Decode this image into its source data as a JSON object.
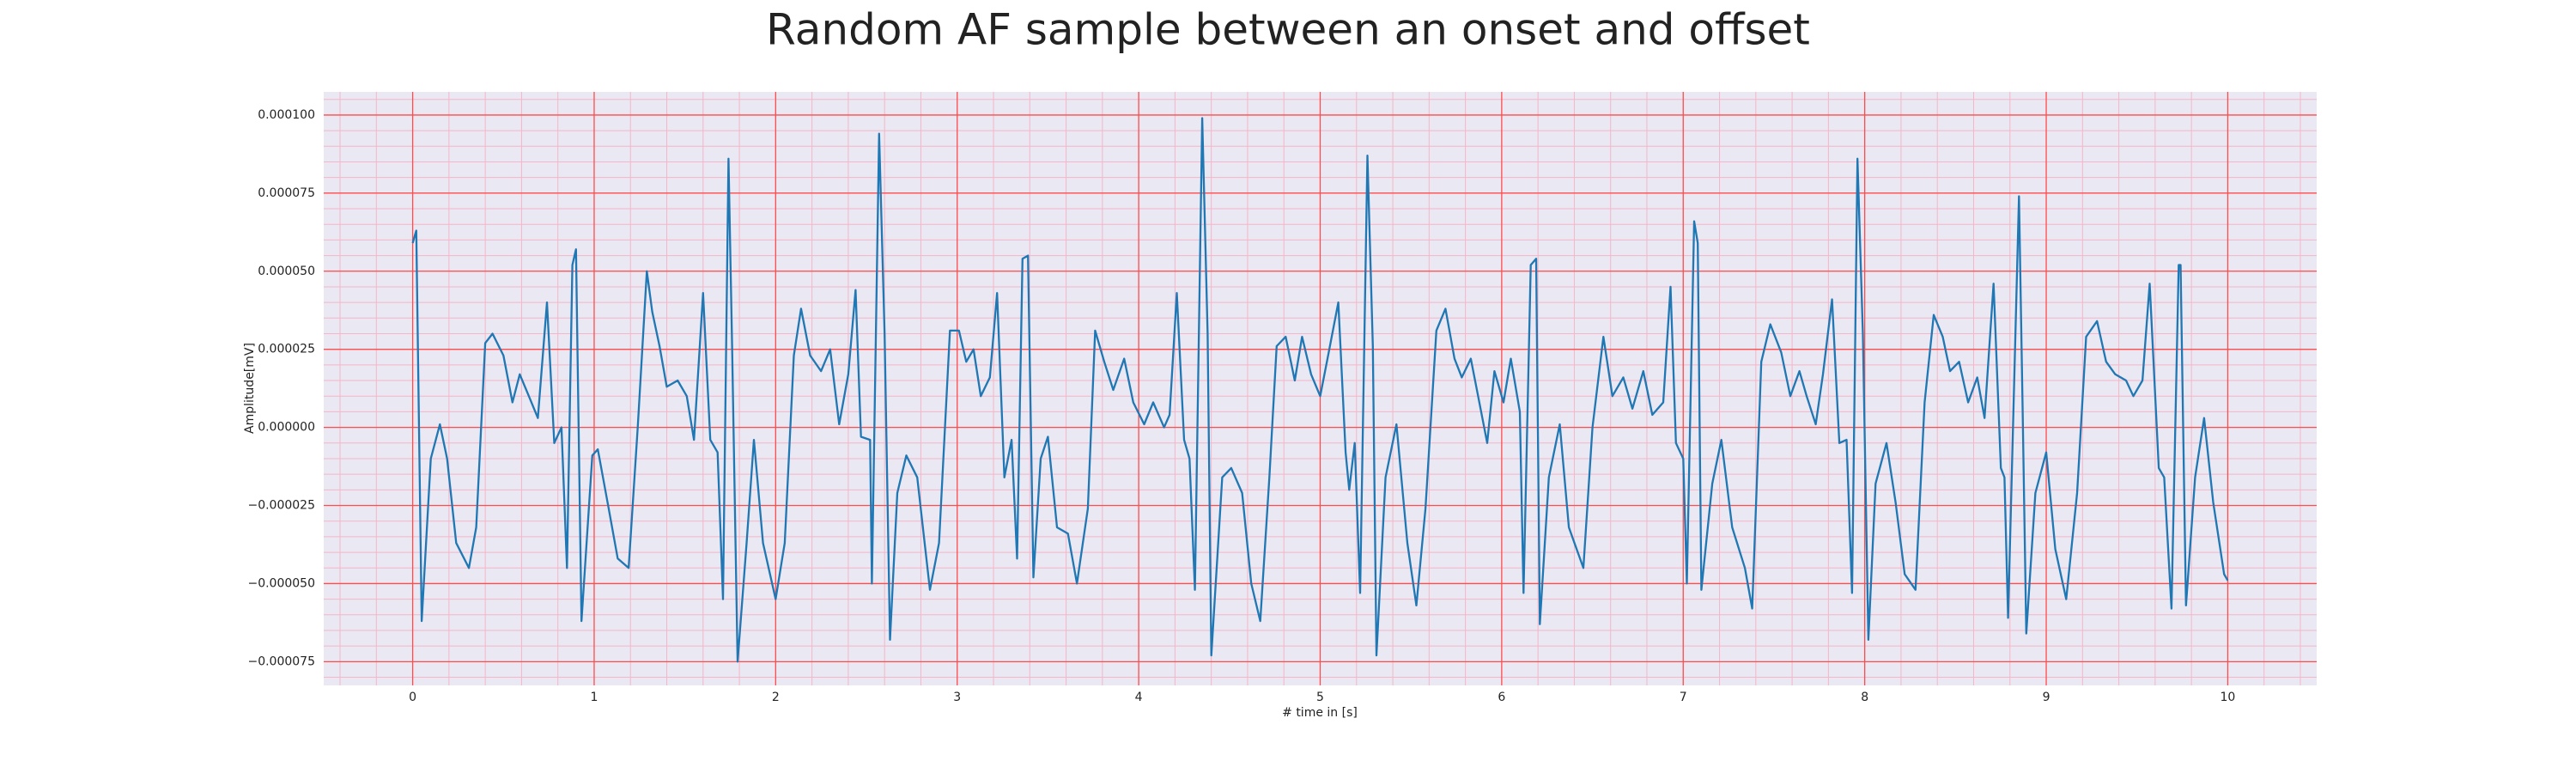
{
  "chart_data": {
    "type": "line",
    "title": "Random AF sample between an onset and offset",
    "x_label": "# time in [s]",
    "y_label": "Amplitude[mV]",
    "color": "#1f77b4",
    "grid": true,
    "major_grid_color": "#ff4d4d",
    "minor_grid_color": "#f4b6c8",
    "background": "#eae8f2",
    "minor_xstep": 0.2,
    "minor_ystep": 5e-06,
    "xlim": [
      -0.49,
      10.49
    ],
    "ylim": [
      -8.26e-05,
      0.0001074
    ],
    "xticks": [
      0,
      1,
      2,
      3,
      4,
      5,
      6,
      7,
      8,
      9,
      10
    ],
    "yticks": [
      {
        "value": -7.5e-05,
        "label": "−0.000075"
      },
      {
        "value": -5e-05,
        "label": "−0.000050"
      },
      {
        "value": -2.5e-05,
        "label": "−0.000025"
      },
      {
        "value": 0,
        "label": "0.000000"
      },
      {
        "value": 2.5e-05,
        "label": "0.000025"
      },
      {
        "value": 5e-05,
        "label": "0.000050"
      },
      {
        "value": 7.5e-05,
        "label": "0.000075"
      },
      {
        "value": 0.0001,
        "label": "0.000100"
      }
    ],
    "x": [
      0,
      0.02,
      0.05,
      0.1,
      0.15,
      0.19,
      0.24,
      0.31,
      0.35,
      0.4,
      0.44,
      0.5,
      0.55,
      0.59,
      0.64,
      0.69,
      0.74,
      0.78,
      0.82,
      0.85,
      0.88,
      0.9,
      0.93,
      0.99,
      1.02,
      1.08,
      1.13,
      1.19,
      1.24,
      1.29,
      1.32,
      1.36,
      1.4,
      1.46,
      1.51,
      1.55,
      1.6,
      1.64,
      1.68,
      1.71,
      1.74,
      1.76,
      1.79,
      1.84,
      1.88,
      1.93,
      2,
      2.05,
      2.1,
      2.14,
      2.19,
      2.25,
      2.3,
      2.35,
      2.4,
      2.44,
      2.47,
      2.52,
      2.53,
      2.57,
      2.6,
      2.63,
      2.67,
      2.72,
      2.78,
      2.85,
      2.9,
      2.96,
      3.01,
      3.05,
      3.09,
      3.13,
      3.18,
      3.22,
      3.26,
      3.3,
      3.33,
      3.36,
      3.39,
      3.42,
      3.46,
      3.5,
      3.55,
      3.61,
      3.66,
      3.72,
      3.76,
      3.81,
      3.86,
      3.92,
      3.97,
      4.03,
      4.08,
      4.14,
      4.17,
      4.21,
      4.25,
      4.28,
      4.31,
      4.35,
      4.38,
      4.4,
      4.46,
      4.51,
      4.57,
      4.62,
      4.67,
      4.72,
      4.76,
      4.81,
      4.86,
      4.9,
      4.95,
      5,
      5.04,
      5.1,
      5.14,
      5.16,
      5.19,
      5.22,
      5.26,
      5.29,
      5.31,
      5.36,
      5.42,
      5.48,
      5.53,
      5.58,
      5.64,
      5.69,
      5.74,
      5.78,
      5.83,
      5.87,
      5.92,
      5.96,
      6.01,
      6.05,
      6.1,
      6.12,
      6.16,
      6.19,
      6.21,
      6.26,
      6.32,
      6.37,
      6.45,
      6.5,
      6.56,
      6.61,
      6.67,
      6.72,
      6.78,
      6.83,
      6.89,
      6.93,
      6.96,
      7,
      7.02,
      7.06,
      7.08,
      7.1,
      7.16,
      7.21,
      7.27,
      7.34,
      7.38,
      7.43,
      7.48,
      7.54,
      7.59,
      7.64,
      7.68,
      7.73,
      7.77,
      7.82,
      7.86,
      7.9,
      7.93,
      7.96,
      7.99,
      8.02,
      8.06,
      8.12,
      8.17,
      8.22,
      8.28,
      8.33,
      8.38,
      8.43,
      8.47,
      8.52,
      8.57,
      8.62,
      8.66,
      8.71,
      8.75,
      8.77,
      8.79,
      8.85,
      8.87,
      8.89,
      8.94,
      9,
      9.05,
      9.11,
      9.17,
      9.22,
      9.28,
      9.33,
      9.38,
      9.44,
      9.48,
      9.53,
      9.57,
      9.62,
      9.65,
      9.69,
      9.73,
      9.74,
      9.77,
      9.82,
      9.87,
      9.92,
      9.98,
      10
    ],
    "values": [
      5.9e-05,
      6.3e-05,
      -6.2e-05,
      -1e-05,
      1e-06,
      -1e-05,
      -3.7e-05,
      -4.5e-05,
      -3.2e-05,
      2.7e-05,
      3e-05,
      2.3e-05,
      8e-06,
      1.7e-05,
      1e-05,
      3e-06,
      4e-05,
      -5e-06,
      0,
      -4.5e-05,
      5.2e-05,
      5.7e-05,
      -6.2e-05,
      -9e-06,
      -7e-06,
      -2.6e-05,
      -4.2e-05,
      -4.5e-05,
      0,
      5e-05,
      3.7e-05,
      2.6e-05,
      1.3e-05,
      1.5e-05,
      1e-05,
      -4e-06,
      4.3e-05,
      -4e-06,
      -8e-06,
      -5.5e-05,
      8.6e-05,
      2.6e-05,
      -7.5e-05,
      -3.7e-05,
      -4e-06,
      -3.7e-05,
      -5.5e-05,
      -3.7e-05,
      2.3e-05,
      3.8e-05,
      2.3e-05,
      1.8e-05,
      2.5e-05,
      1e-06,
      1.7e-05,
      4.4e-05,
      -3e-06,
      -4e-06,
      -5e-05,
      9.4e-05,
      3e-05,
      -6.8e-05,
      -2.1e-05,
      -9e-06,
      -1.6e-05,
      -5.2e-05,
      -3.7e-05,
      3.1e-05,
      3.1e-05,
      2.1e-05,
      2.5e-05,
      1e-05,
      1.6e-05,
      4.3e-05,
      -1.6e-05,
      -4e-06,
      -4.2e-05,
      5.4e-05,
      5.5e-05,
      -4.8e-05,
      -1e-05,
      -3e-06,
      -3.2e-05,
      -3.4e-05,
      -5e-05,
      -2.6e-05,
      3.1e-05,
      2.1e-05,
      1.2e-05,
      2.2e-05,
      8e-06,
      1e-06,
      8e-06,
      0,
      4e-06,
      4.3e-05,
      -4e-06,
      -1e-05,
      -5.2e-05,
      9.9e-05,
      3e-05,
      -7.3e-05,
      -1.6e-05,
      -1.3e-05,
      -2.1e-05,
      -5e-05,
      -6.2e-05,
      -1.6e-05,
      2.6e-05,
      2.9e-05,
      1.5e-05,
      2.9e-05,
      1.7e-05,
      1e-05,
      2.2e-05,
      4e-05,
      -8e-06,
      -2e-05,
      -5e-06,
      -5.3e-05,
      8.7e-05,
      2.6e-05,
      -7.3e-05,
      -1.6e-05,
      1e-06,
      -3.7e-05,
      -5.7e-05,
      -2.6e-05,
      3.1e-05,
      3.8e-05,
      2.2e-05,
      1.6e-05,
      2.2e-05,
      1e-05,
      -5e-06,
      1.8e-05,
      8e-06,
      2.2e-05,
      5e-06,
      -5.3e-05,
      5.2e-05,
      5.4e-05,
      -6.3e-05,
      -1.6e-05,
      1e-06,
      -3.2e-05,
      -4.5e-05,
      0,
      2.9e-05,
      1e-05,
      1.6e-05,
      6e-06,
      1.8e-05,
      4e-06,
      8e-06,
      4.5e-05,
      -5e-06,
      -1e-05,
      -5e-05,
      6.6e-05,
      5.9e-05,
      -5.2e-05,
      -1.8e-05,
      -4e-06,
      -3.2e-05,
      -4.5e-05,
      -5.8e-05,
      2.1e-05,
      3.3e-05,
      2.4e-05,
      1e-05,
      1.8e-05,
      1e-05,
      1e-06,
      1.7e-05,
      4.1e-05,
      -5e-06,
      -4e-06,
      -5.3e-05,
      8.6e-05,
      3e-05,
      -6.8e-05,
      -1.8e-05,
      -5e-06,
      -2.4e-05,
      -4.7e-05,
      -5.2e-05,
      8e-06,
      3.6e-05,
      2.9e-05,
      1.8e-05,
      2.1e-05,
      8e-06,
      1.6e-05,
      3e-06,
      4.6e-05,
      -1.3e-05,
      -1.6e-05,
      -6.1e-05,
      7.4e-05,
      5e-06,
      -6.6e-05,
      -2.1e-05,
      -8e-06,
      -3.9e-05,
      -5.5e-05,
      -2.1e-05,
      2.9e-05,
      3.4e-05,
      2.1e-05,
      1.7e-05,
      1.5e-05,
      1e-05,
      1.5e-05,
      4.6e-05,
      -1.3e-05,
      -1.6e-05,
      -5.8e-05,
      5.2e-05,
      5.2e-05,
      -5.7e-05,
      -1.6e-05,
      3e-06,
      -2.4e-05,
      -4.7e-05,
      -4.9e-05
    ]
  }
}
